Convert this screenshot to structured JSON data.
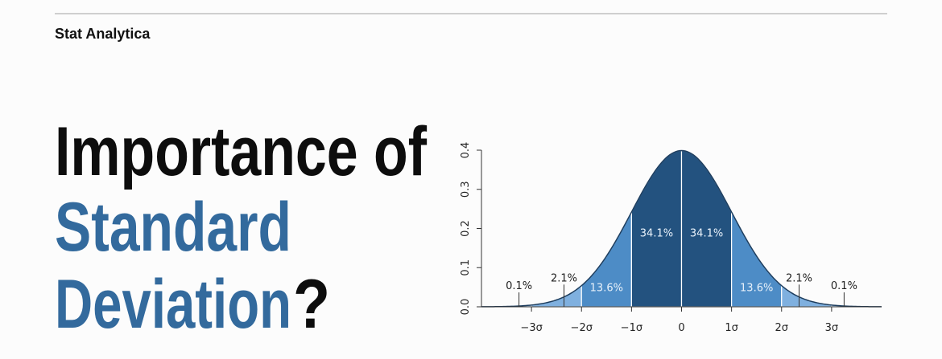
{
  "header": {
    "brand": "Stat Analytica"
  },
  "headline": {
    "line1": "Importance of",
    "line2": "Standard",
    "line3": "Deviation",
    "mark": "?"
  },
  "chart_data": {
    "type": "normal-bands",
    "categories": [
      null,
      null,
      null,
      null,
      null,
      null,
      null,
      null
    ],
    "values": [
      0.1,
      2.1,
      13.6,
      34.1,
      34.1,
      13.6,
      2.1,
      0.1
    ],
    "value_labels": [
      "0.1%",
      "2.1%",
      "13.6%",
      "34.1%",
      "34.1%",
      "13.6%",
      "2.1%",
      "0.1%"
    ],
    "colors": [
      "#a9cbeb",
      "#7fb0df",
      "#4d8cc6",
      "#23527f",
      "#23527f",
      "#4d8cc6",
      "#7fb0df",
      "#a9cbeb"
    ],
    "xlim": [
      -4,
      4
    ],
    "xticks": [
      {
        "value": -3,
        "label": "−3σ"
      },
      {
        "value": -2,
        "label": "−2σ"
      },
      {
        "value": -1,
        "label": "−1σ"
      },
      0,
      {
        "value": 1,
        "label": "1σ"
      },
      {
        "value": 2,
        "label": "2σ"
      },
      {
        "value": 3,
        "label": "3σ"
      }
    ],
    "ylim": [
      0,
      0.4
    ],
    "yticks": [
      {
        "value": 0,
        "label": "0.0"
      },
      0.1,
      0.2,
      0.3,
      0.4
    ]
  }
}
